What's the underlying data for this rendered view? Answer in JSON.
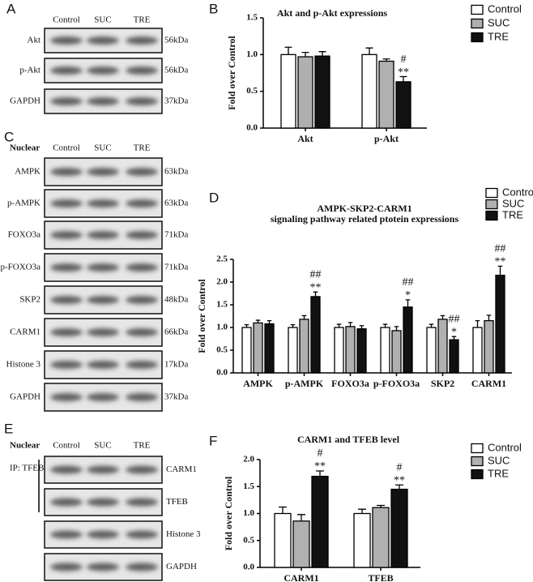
{
  "blots": [
    {
      "panel": "A",
      "columns": [
        "Control",
        "SUC",
        "TRE"
      ],
      "rows": [
        {
          "label": "Akt",
          "size": "56kDa"
        },
        {
          "label": "p-Akt",
          "size": "56kDa"
        },
        {
          "label": "GAPDH",
          "size": "37kDa"
        }
      ]
    },
    {
      "panel": "C",
      "header": "Nuclear",
      "columns": [
        "Control",
        "SUC",
        "TRE"
      ],
      "rows": [
        {
          "label": "AMPK",
          "size": "63kDa"
        },
        {
          "label": "p-AMPK",
          "size": "63kDa"
        },
        {
          "label": "FOXO3a",
          "size": "71kDa"
        },
        {
          "label": "p-FOXO3a",
          "size": "71kDa"
        },
        {
          "label": "SKP2",
          "size": "48kDa"
        },
        {
          "label": "CARM1",
          "size": "66kDa"
        },
        {
          "label": "Histone 3",
          "size": "17kDa"
        },
        {
          "label": "GAPDH",
          "size": "37kDa"
        }
      ]
    },
    {
      "panel": "E",
      "header": "Nuclear",
      "group": "IP: TFEB",
      "columns": [
        "Control",
        "SUC",
        "TRE"
      ],
      "rows": [
        {
          "label": "CARM1"
        },
        {
          "label": "TFEB"
        },
        {
          "label": "Histone 3"
        },
        {
          "label": "GAPDH"
        }
      ]
    }
  ],
  "chart_data": [
    {
      "panel": "B",
      "type": "bar",
      "title": "Akt and p-Akt expressions",
      "y_label": "Fold over  Control",
      "categories": [
        "Akt",
        "p-Akt"
      ],
      "series": [
        {
          "name": "Control",
          "color": "#ffffff",
          "values": [
            1.0,
            1.0
          ],
          "errors": [
            0.1,
            0.09
          ]
        },
        {
          "name": "SUC",
          "color": "#b0b0b0",
          "values": [
            0.97,
            0.91
          ],
          "errors": [
            0.06,
            0.03
          ]
        },
        {
          "name": "TRE",
          "color": "#111111",
          "values": [
            0.98,
            0.63
          ],
          "errors": [
            0.06,
            0.07
          ],
          "annotations": [
            null,
            [
              "#",
              "**"
            ]
          ]
        }
      ],
      "ylim": [
        0,
        1.5
      ],
      "yticks": [
        {
          "value": 0,
          "label": "0.0"
        },
        0.5,
        {
          "value": 1,
          "label": "1.0"
        },
        1.5
      ]
    },
    {
      "panel": "D",
      "type": "bar",
      "title": [
        "AMPK-SKP2-CARM1",
        "signaling pathway related ptotein expressions"
      ],
      "y_label": "Fold over  Control",
      "categories": [
        "AMPK",
        "p-AMPK",
        "FOXO3a",
        "p-FOXO3a",
        "SKP2",
        "CARM1"
      ],
      "series": [
        {
          "name": "Control",
          "color": "#ffffff",
          "values": [
            1.0,
            1.0,
            1.0,
            1.0,
            1.0,
            1.0
          ],
          "errors": [
            0.06,
            0.06,
            0.07,
            0.07,
            0.07,
            0.15
          ]
        },
        {
          "name": "SUC",
          "color": "#b0b0b0",
          "values": [
            1.1,
            1.18,
            1.02,
            0.93,
            1.18,
            1.15
          ],
          "errors": [
            0.06,
            0.08,
            0.09,
            0.09,
            0.08,
            0.12
          ]
        },
        {
          "name": "TRE",
          "color": "#111111",
          "values": [
            1.08,
            1.68,
            0.97,
            1.45,
            0.73,
            2.15
          ],
          "errors": [
            0.07,
            0.1,
            0.07,
            0.16,
            0.07,
            0.2
          ],
          "annotations": [
            null,
            [
              "##",
              "**"
            ],
            null,
            [
              "##",
              "*"
            ],
            [
              "##",
              "*"
            ],
            [
              "##",
              "**"
            ]
          ]
        }
      ],
      "ylim": [
        0,
        2.5
      ],
      "yticks": [
        {
          "value": 0,
          "label": "0.0"
        },
        0.5,
        {
          "value": 1,
          "label": "1.0"
        },
        1.5,
        {
          "value": 2,
          "label": "2.0"
        },
        2.5
      ]
    },
    {
      "panel": "F",
      "type": "bar",
      "title": "CARM1 and TFEB level",
      "y_label": "Fold over  Control",
      "categories": [
        "CARM1",
        "TFEB"
      ],
      "series": [
        {
          "name": "Control",
          "color": "#ffffff",
          "values": [
            1.0,
            1.0
          ],
          "errors": [
            0.12,
            0.08
          ]
        },
        {
          "name": "SUC",
          "color": "#b0b0b0",
          "values": [
            0.86,
            1.11
          ],
          "errors": [
            0.12,
            0.04
          ]
        },
        {
          "name": "TRE",
          "color": "#111111",
          "values": [
            1.69,
            1.45
          ],
          "errors": [
            0.1,
            0.08
          ],
          "annotations": [
            [
              "#",
              "**"
            ],
            [
              "#",
              "**"
            ]
          ]
        }
      ],
      "ylim": [
        0,
        2
      ],
      "yticks": [
        {
          "value": 0,
          "label": "0.0"
        },
        0.5,
        {
          "value": 1,
          "label": "1.0"
        },
        1.5,
        {
          "value": 2,
          "label": "2.0"
        }
      ]
    }
  ]
}
